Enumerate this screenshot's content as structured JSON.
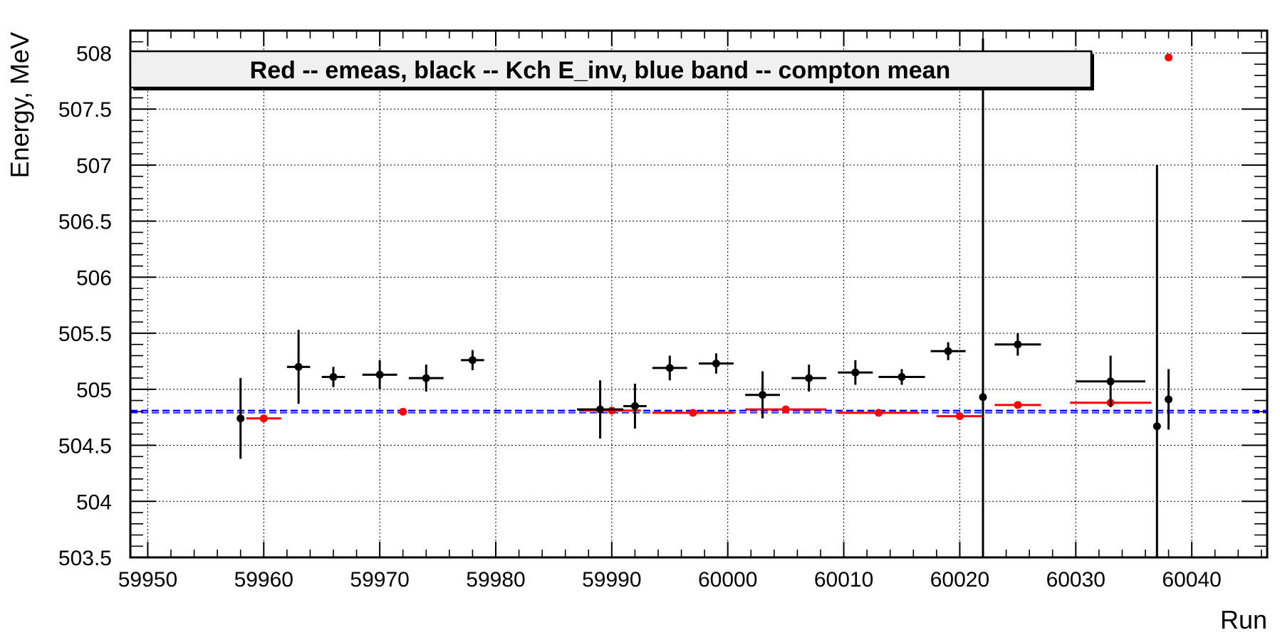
{
  "chart_data": {
    "type": "scatter",
    "title": "",
    "xlabel": "Run",
    "ylabel": "Energy, MeV",
    "xlim": [
      59948.5,
      60046.5
    ],
    "ylim": [
      503.5,
      508.2
    ],
    "grid": true,
    "legend_text": "Red -- emeas, black -- Kch E_inv, blue band -- compton mean",
    "legend_placement": "top-left",
    "x_ticks": [
      "59950",
      "59960",
      "59970",
      "59980",
      "59990",
      "60000",
      "60010",
      "60020",
      "60030",
      "60040"
    ],
    "y_ticks": [
      "503.5",
      "504",
      "504.5",
      "505",
      "505.5",
      "506",
      "506.5",
      "507",
      "507.5",
      "508"
    ],
    "colors": {
      "emeas": "#ff0000",
      "kch": "#000000",
      "compton": "#0000ff"
    },
    "compton_mean": 504.8,
    "series": [
      {
        "key": "emeas",
        "points": [
          {
            "x": 59960,
            "y": 504.74,
            "xerr": 1.5,
            "yerr": 0
          },
          {
            "x": 59972,
            "y": 504.8,
            "xerr": 0,
            "yerr": 0
          },
          {
            "x": 59990,
            "y": 504.81,
            "xerr": 2.5,
            "yerr": 0
          },
          {
            "x": 59997,
            "y": 504.79,
            "xerr": 3.5,
            "yerr": 0
          },
          {
            "x": 60005,
            "y": 504.82,
            "xerr": 3.5,
            "yerr": 0
          },
          {
            "x": 60013,
            "y": 504.79,
            "xerr": 3.5,
            "yerr": 0
          },
          {
            "x": 60020,
            "y": 504.76,
            "xerr": 2.0,
            "yerr": 0
          },
          {
            "x": 60025,
            "y": 504.86,
            "xerr": 2.0,
            "yerr": 0
          },
          {
            "x": 60033,
            "y": 504.88,
            "xerr": 3.5,
            "yerr": 0
          },
          {
            "x": 60038,
            "y": 507.96,
            "xerr": 0,
            "yerr": 0
          }
        ]
      },
      {
        "key": "kch",
        "points": [
          {
            "x": 59958,
            "y": 504.74,
            "xerr": 0,
            "yerr": 0.36
          },
          {
            "x": 59963,
            "y": 505.2,
            "xerr": 1.0,
            "yerr": 0.33
          },
          {
            "x": 59966,
            "y": 505.11,
            "xerr": 1.0,
            "yerr": 0.09
          },
          {
            "x": 59970,
            "y": 505.13,
            "xerr": 1.5,
            "yerr": 0.13
          },
          {
            "x": 59974,
            "y": 505.1,
            "xerr": 1.5,
            "yerr": 0.12
          },
          {
            "x": 59978,
            "y": 505.26,
            "xerr": 1.0,
            "yerr": 0.09
          },
          {
            "x": 59989,
            "y": 504.82,
            "xerr": 2.0,
            "yerr": 0.26
          },
          {
            "x": 59992,
            "y": 504.85,
            "xerr": 1.0,
            "yerr": 0.2
          },
          {
            "x": 59995,
            "y": 505.19,
            "xerr": 1.5,
            "yerr": 0.11
          },
          {
            "x": 59999,
            "y": 505.23,
            "xerr": 1.5,
            "yerr": 0.09
          },
          {
            "x": 60003,
            "y": 504.95,
            "xerr": 1.5,
            "yerr": 0.21
          },
          {
            "x": 60007,
            "y": 505.1,
            "xerr": 1.5,
            "yerr": 0.12
          },
          {
            "x": 60011,
            "y": 505.15,
            "xerr": 1.5,
            "yerr": 0.11
          },
          {
            "x": 60015,
            "y": 505.11,
            "xerr": 2.0,
            "yerr": 0.07
          },
          {
            "x": 60019,
            "y": 505.34,
            "xerr": 1.5,
            "yerr": 0.08
          },
          {
            "x": 60022,
            "y": 504.93,
            "xerr": 0,
            "yerr": 3.2
          },
          {
            "x": 60025,
            "y": 505.4,
            "xerr": 2.0,
            "yerr": 0.1
          },
          {
            "x": 60033,
            "y": 505.07,
            "xerr": 3.0,
            "yerr": 0.23
          },
          {
            "x": 60037,
            "y": 504.67,
            "xerr": 0,
            "yerr": 2.33
          },
          {
            "x": 60038,
            "y": 504.91,
            "xerr": 0,
            "yerr": 0.27
          }
        ]
      }
    ]
  }
}
